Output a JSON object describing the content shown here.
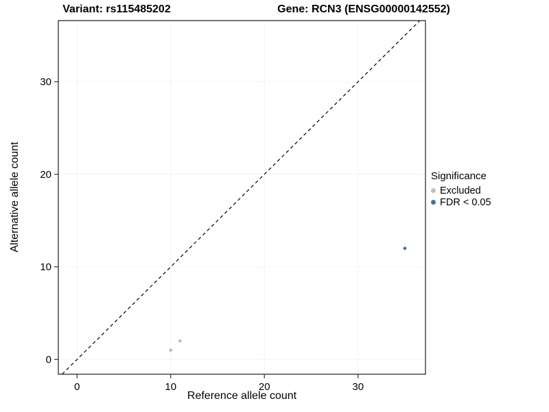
{
  "chart_data": {
    "type": "scatter",
    "title_left": "Variant: rs115485202",
    "title_right": "Gene: RCN3 (ENSG00000142552)",
    "xlabel": "Reference allele count",
    "ylabel": "Alternative allele count",
    "xlim": [
      -2,
      37.2
    ],
    "ylim": [
      -1.6,
      36.6
    ],
    "xticks": [
      0,
      10,
      20,
      30
    ],
    "yticks": [
      0,
      10,
      20,
      30
    ],
    "grid": true,
    "gridline_color": "#f4f4f4",
    "panel_border_color": "#1a1a1a",
    "identity_line": {
      "slope": 1,
      "intercept": 0,
      "style": "dashed",
      "color": "#000000"
    },
    "legend": {
      "title": "Significance",
      "position": "right"
    },
    "series": [
      {
        "name": "Excluded",
        "color": "#bfbfbf",
        "points": [
          [
            10,
            1
          ],
          [
            11,
            2
          ]
        ]
      },
      {
        "name": "FDR < 0.05",
        "color": "#4472a8",
        "points": [
          [
            35,
            12
          ]
        ]
      }
    ]
  }
}
